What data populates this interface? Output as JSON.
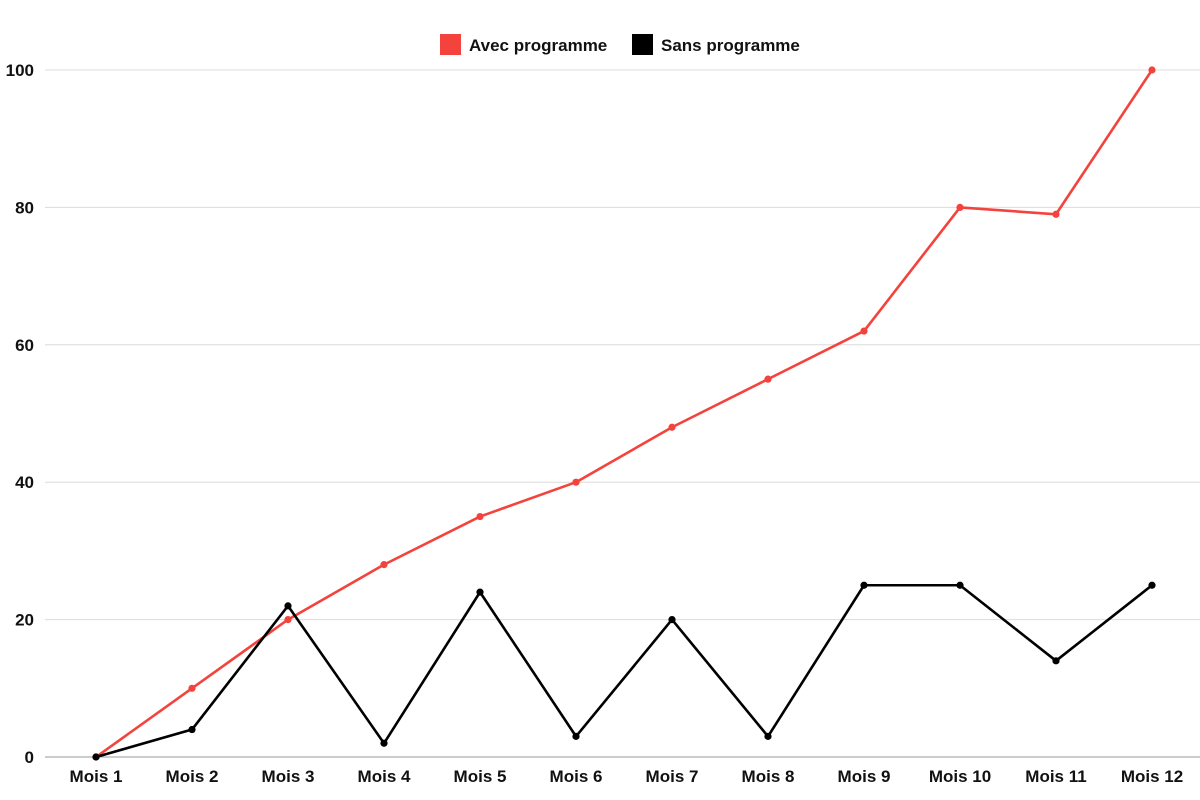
{
  "chart_data": {
    "type": "line",
    "categories": [
      "Mois 1",
      "Mois 2",
      "Mois 3",
      "Mois 4",
      "Mois 5",
      "Mois 6",
      "Mois 7",
      "Mois 8",
      "Mois 9",
      "Mois 10",
      "Mois 11",
      "Mois 12"
    ],
    "series": [
      {
        "name": "Avec programme",
        "color": "#f4433c",
        "values": [
          0,
          10,
          20,
          28,
          35,
          40,
          48,
          55,
          62,
          80,
          79,
          100
        ]
      },
      {
        "name": "Sans programme",
        "color": "#000000",
        "values": [
          0,
          4,
          22,
          2,
          24,
          3,
          20,
          3,
          25,
          25,
          14,
          25
        ]
      }
    ],
    "ylim": [
      0,
      100
    ],
    "yticks": [
      "0",
      "20",
      "40",
      "60",
      "80",
      "100"
    ],
    "grid": true,
    "legend_position": "top-center",
    "title": "",
    "xlabel": "",
    "ylabel": ""
  }
}
